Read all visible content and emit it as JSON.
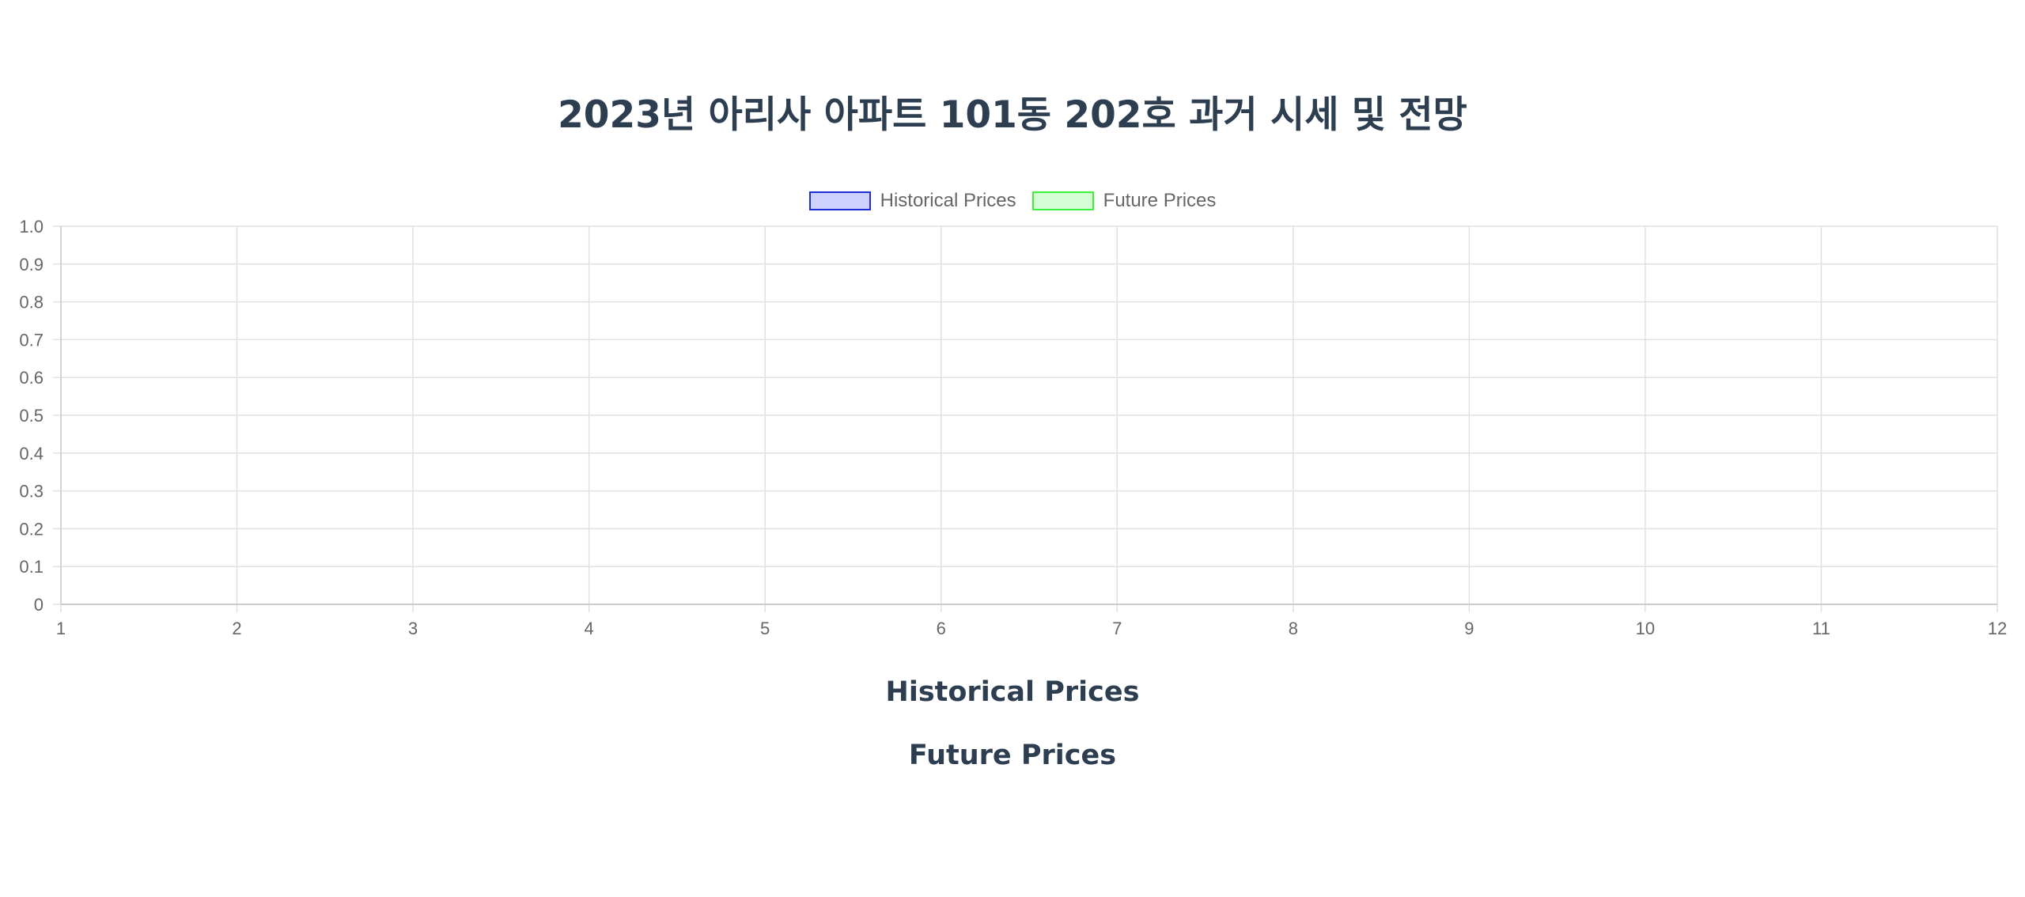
{
  "page": {
    "title": "2023년 아리사 아파트 101동 202호 과거 시세 및 전망"
  },
  "sections": {
    "historical_heading": "Historical Prices",
    "future_heading": "Future Prices"
  },
  "chart_data": {
    "type": "line",
    "title": "",
    "xlabel": "",
    "ylabel": "",
    "x_ticks": [
      1,
      2,
      3,
      4,
      5,
      6,
      7,
      8,
      9,
      10,
      11,
      12
    ],
    "y_ticks": [
      "0",
      "0.1",
      "0.2",
      "0.3",
      "0.4",
      "0.5",
      "0.6",
      "0.7",
      "0.8",
      "0.9",
      "1.0"
    ],
    "xlim": [
      1,
      12
    ],
    "ylim": [
      0,
      1
    ],
    "grid": true,
    "legend_position": "top-center",
    "series": [
      {
        "name": "Historical Prices",
        "border_color": "#1f2fd6",
        "fill_color": "#cdd1fb",
        "x": [],
        "values": []
      },
      {
        "name": "Future Prices",
        "border_color": "#3cf03c",
        "fill_color": "#d4fdd4",
        "x": [],
        "values": []
      }
    ]
  }
}
